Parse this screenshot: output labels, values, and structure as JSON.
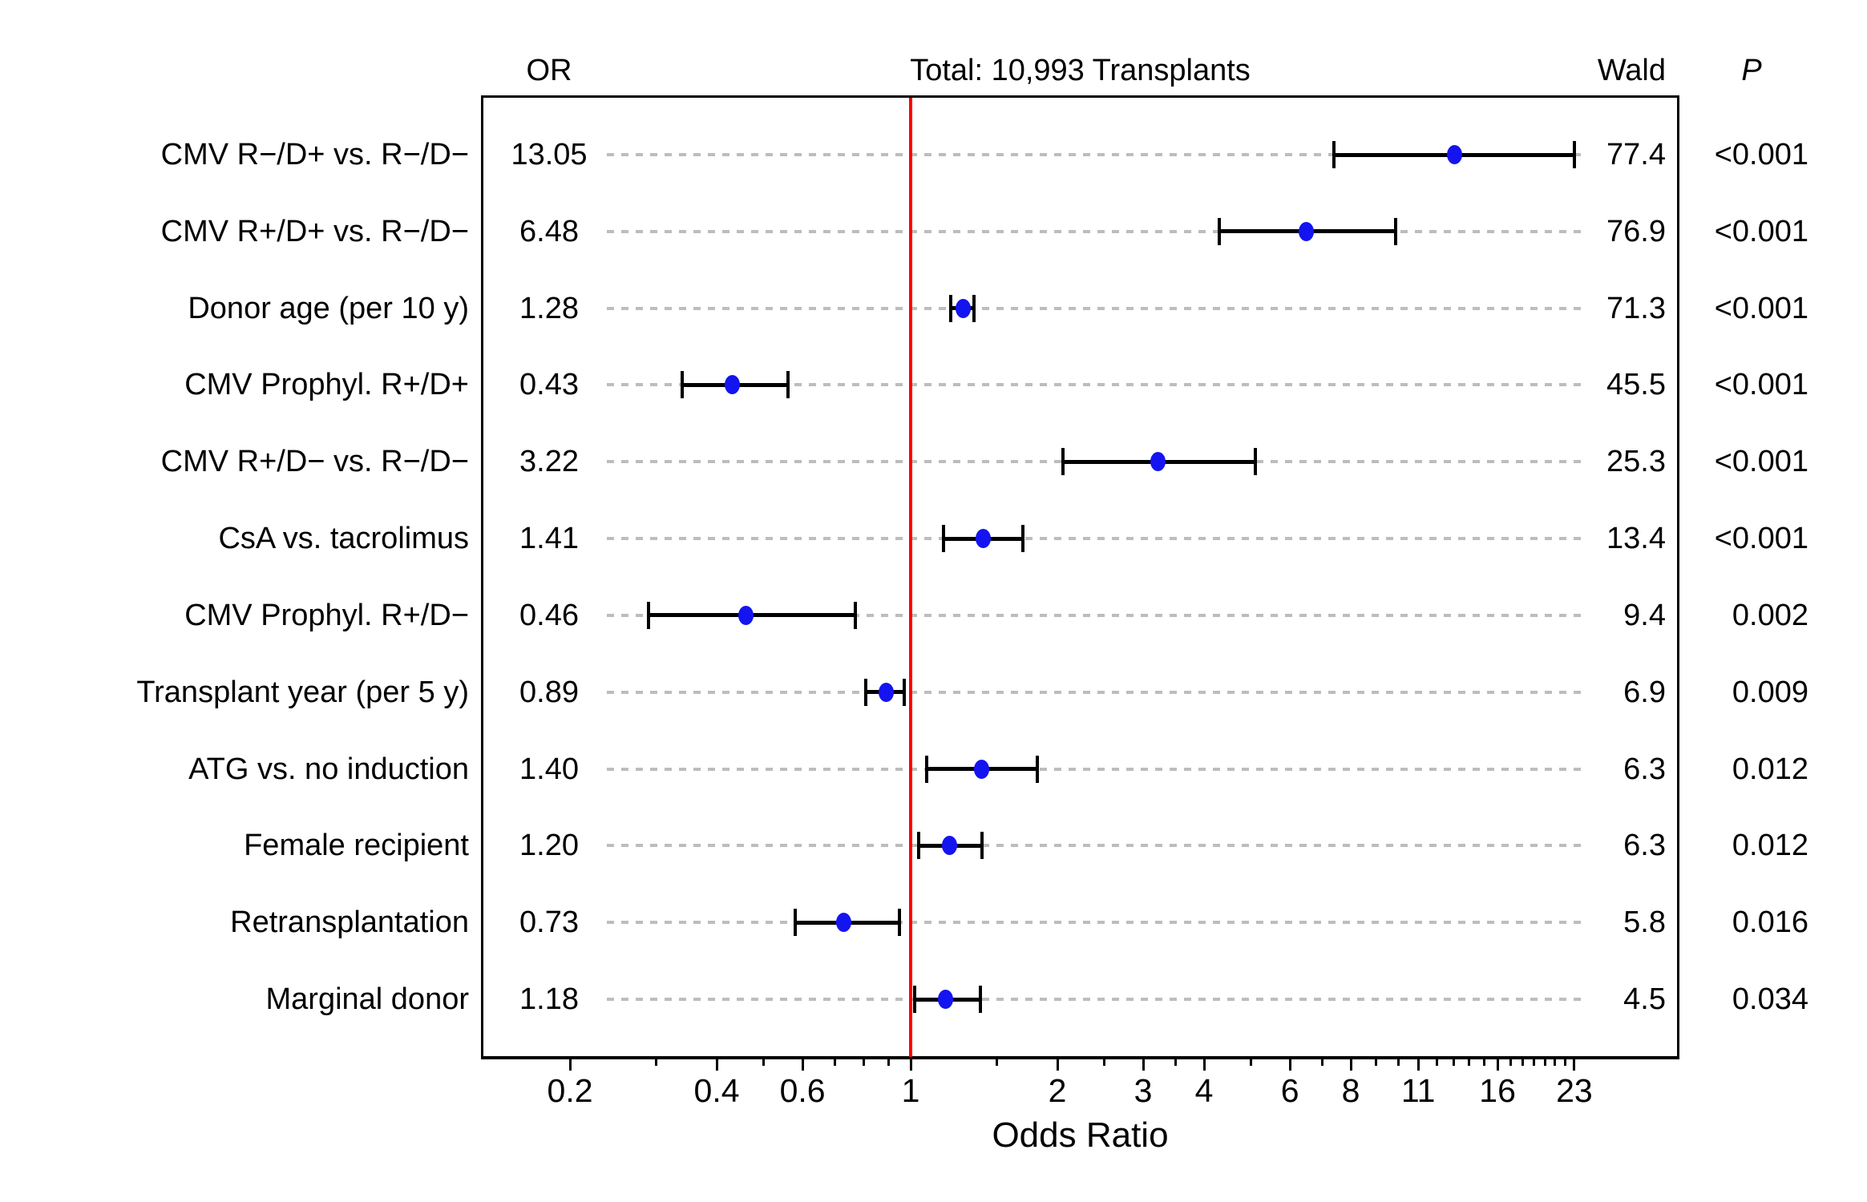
{
  "figure": {
    "header": {
      "or_col": "OR",
      "title": "Total: 10,993 Transplants",
      "wald_col": "Wald",
      "p_col": "P"
    },
    "x_axis_title": "Odds Ratio"
  },
  "chart_data": {
    "type": "scatter",
    "subtype": "forest-plot",
    "title": "Total: 10,993 Transplants",
    "xlabel": "Odds Ratio",
    "x_scale": "log",
    "x_range_approx": [
      0.13,
      37.8
    ],
    "reference_line_x": 1,
    "reference_line_color": "#ff0000",
    "point_color": "#1414f0",
    "gridline_color": "#bdbdbd",
    "legend": "none",
    "columns": [
      "label",
      "OR",
      "CI_low_est",
      "CI_high_est",
      "Wald",
      "P"
    ],
    "x_ticks_major": [
      {
        "value": 0.2,
        "label": "0.2"
      },
      {
        "value": 0.4,
        "label": "0.4"
      },
      {
        "value": 0.6,
        "label": "0.6"
      },
      {
        "value": 1,
        "label": "1"
      },
      {
        "value": 2,
        "label": "2"
      },
      {
        "value": 3,
        "label": "3"
      },
      {
        "value": 4,
        "label": "4"
      },
      {
        "value": 6,
        "label": "6"
      },
      {
        "value": 8,
        "label": "8"
      },
      {
        "value": 11,
        "label": "11"
      },
      {
        "value": 16,
        "label": "16"
      },
      {
        "value": 23,
        "label": "23"
      }
    ],
    "x_ticks_minor": [
      0.3,
      0.5,
      0.7,
      0.8,
      0.9,
      1.5,
      2.5,
      3.5,
      5,
      7,
      9,
      10,
      12,
      13,
      14,
      15,
      17,
      18,
      19,
      20,
      21,
      22
    ],
    "rows": [
      {
        "label": "CMV R−/D+ vs. R−/D−",
        "or": "13.05",
        "or_value": 13.05,
        "ci_low": 7.4,
        "ci_high": 23.0,
        "wald": "77.4",
        "p": "<0.001"
      },
      {
        "label": "CMV R+/D+ vs. R−/D−",
        "or": "6.48",
        "or_value": 6.48,
        "ci_low": 4.3,
        "ci_high": 9.9,
        "wald": "76.9",
        "p": "<0.001"
      },
      {
        "label": "Donor age (per 10 y)",
        "or": "1.28",
        "or_value": 1.28,
        "ci_low": 1.21,
        "ci_high": 1.35,
        "wald": "71.3",
        "p": "<0.001"
      },
      {
        "label": "CMV Prophyl. R+/D+",
        "or": "0.43",
        "or_value": 0.43,
        "ci_low": 0.34,
        "ci_high": 0.56,
        "wald": "45.5",
        "p": "<0.001"
      },
      {
        "label": "CMV R+/D− vs. R−/D−",
        "or": "3.22",
        "or_value": 3.22,
        "ci_low": 2.05,
        "ci_high": 5.1,
        "wald": "25.3",
        "p": "<0.001"
      },
      {
        "label": "CsA vs. tacrolimus",
        "or": "1.41",
        "or_value": 1.41,
        "ci_low": 1.17,
        "ci_high": 1.7,
        "wald": "13.4",
        "p": "<0.001"
      },
      {
        "label": "CMV Prophyl. R+/D−",
        "or": "0.46",
        "or_value": 0.46,
        "ci_low": 0.29,
        "ci_high": 0.77,
        "wald": "9.4",
        "p": "0.002"
      },
      {
        "label": "Transplant year (per 5 y)",
        "or": "0.89",
        "or_value": 0.89,
        "ci_low": 0.81,
        "ci_high": 0.97,
        "wald": "6.9",
        "p": "0.009"
      },
      {
        "label": "ATG vs. no induction",
        "or": "1.40",
        "or_value": 1.4,
        "ci_low": 1.08,
        "ci_high": 1.82,
        "wald": "6.3",
        "p": "0.012"
      },
      {
        "label": "Female recipient",
        "or": "1.20",
        "or_value": 1.2,
        "ci_low": 1.04,
        "ci_high": 1.4,
        "wald": "6.3",
        "p": "0.012"
      },
      {
        "label": "Retransplantation",
        "or": "0.73",
        "or_value": 0.73,
        "ci_low": 0.58,
        "ci_high": 0.95,
        "wald": "5.8",
        "p": "0.016"
      },
      {
        "label": "Marginal donor",
        "or": "1.18",
        "or_value": 1.18,
        "ci_low": 1.02,
        "ci_high": 1.39,
        "wald": "4.5",
        "p": "0.034"
      }
    ]
  },
  "layout_note": "log-scale odds ratio forest plot; CI bounds estimated from plotted whisker positions"
}
